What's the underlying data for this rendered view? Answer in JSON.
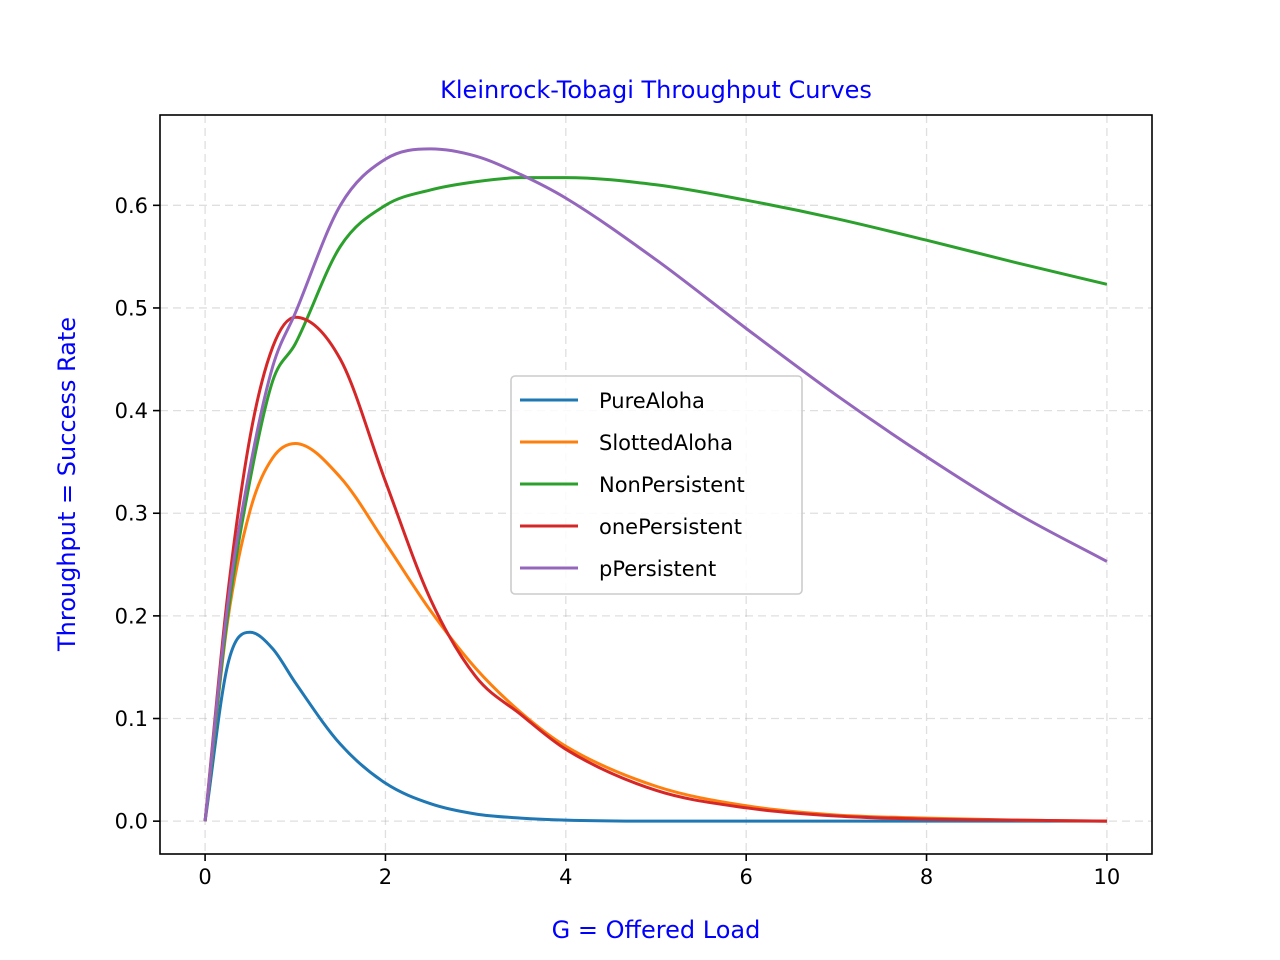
{
  "chart_data": {
    "type": "line",
    "title": "Kleinrock-Tobagi Throughput Curves",
    "xlabel": "G = Offered Load",
    "ylabel": "Throughput = Success Rate",
    "xlim": [
      -0.5,
      10.5
    ],
    "ylim": [
      -0.032,
      0.688
    ],
    "xticks": [
      0,
      2,
      4,
      6,
      8,
      10
    ],
    "xtick_labels": [
      "0",
      "2",
      "4",
      "6",
      "8",
      "10"
    ],
    "yticks": [
      0.0,
      0.1,
      0.2,
      0.3,
      0.4,
      0.5,
      0.6
    ],
    "ytick_labels": [
      "0.0",
      "0.1",
      "0.2",
      "0.3",
      "0.4",
      "0.5",
      "0.6"
    ],
    "grid": true,
    "legend": {
      "position": "center",
      "entries": [
        "PureAloha",
        "SlottedAloha",
        "NonPersistent",
        "onePersistent",
        "pPersistent"
      ]
    },
    "colors": {
      "title": "#0000ff",
      "axis_labels": "#0000ff",
      "PureAloha": "#1f77b4",
      "SlottedAloha": "#ff7f0e",
      "NonPersistent": "#2ca02c",
      "onePersistent": "#d62728",
      "pPersistent": "#9467bd"
    },
    "x": [
      0,
      0.25,
      0.5,
      0.75,
      1,
      1.5,
      2,
      2.5,
      3,
      3.5,
      4,
      5,
      6,
      7,
      8,
      9,
      10
    ],
    "series": [
      {
        "name": "PureAloha",
        "color": "#1f77b4",
        "values": [
          0,
          0.152,
          0.184,
          0.168,
          0.135,
          0.075,
          0.037,
          0.017,
          0.007,
          0.003,
          0.001,
          0.0,
          0.0,
          0.0,
          0.0,
          0.0,
          0.0
        ]
      },
      {
        "name": "SlottedAloha",
        "color": "#ff7f0e",
        "values": [
          0,
          0.195,
          0.303,
          0.354,
          0.368,
          0.335,
          0.271,
          0.205,
          0.149,
          0.106,
          0.073,
          0.034,
          0.015,
          0.006,
          0.003,
          0.001,
          0.0
        ]
      },
      {
        "name": "NonPersistent",
        "color": "#2ca02c",
        "values": [
          0,
          0.2,
          0.333,
          0.429,
          0.465,
          0.56,
          0.6,
          0.615,
          0.623,
          0.627,
          0.627,
          0.62,
          0.605,
          0.587,
          0.566,
          0.544,
          0.523
        ]
      },
      {
        "name": "onePersistent",
        "color": "#d62728",
        "values": [
          0,
          0.22,
          0.375,
          0.462,
          0.491,
          0.45,
          0.331,
          0.216,
          0.141,
          0.104,
          0.07,
          0.03,
          0.013,
          0.005,
          0.002,
          0.001,
          0.0
        ]
      },
      {
        "name": "pPersistent",
        "color": "#9467bd",
        "values": [
          0,
          0.21,
          0.345,
          0.443,
          0.495,
          0.6,
          0.645,
          0.655,
          0.648,
          0.63,
          0.607,
          0.547,
          0.48,
          0.415,
          0.355,
          0.3,
          0.253
        ]
      }
    ]
  }
}
